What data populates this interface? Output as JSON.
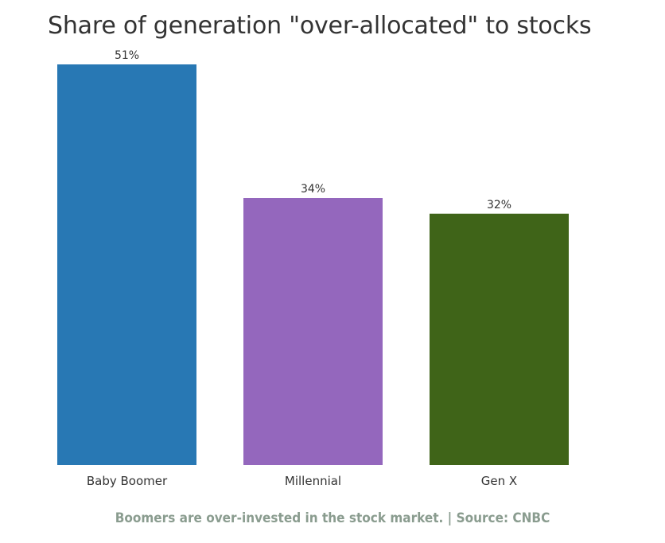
{
  "chart_data": {
    "type": "bar",
    "title": "Share of generation \"over-allocated\" to stocks",
    "categories": [
      "Baby Boomer",
      "Millennial",
      "Gen X"
    ],
    "values": [
      51,
      34,
      32
    ],
    "value_labels": [
      "51%",
      "34%",
      "32%"
    ],
    "colors": [
      "#2878b4",
      "#9467bd",
      "#3f6418"
    ],
    "ylim": [
      0,
      51
    ],
    "grid": false,
    "legend": "none",
    "xlabel": "",
    "ylabel": ""
  },
  "caption": "Boomers are over-invested in the stock market. | Source: CNBC"
}
